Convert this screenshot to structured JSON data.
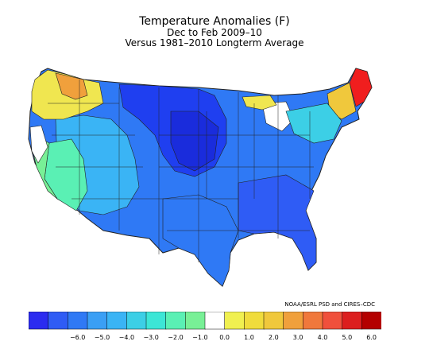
{
  "title": "Temperature Anomalies (F)",
  "subtitle": "Dec to Feb 2009–10",
  "baseline": "Versus 1981–2010 Longterm Average",
  "credit": "NOAA/ESRL PSD and CIRES–CDC",
  "colorbar": {
    "colors": [
      "#2b2bf0",
      "#2f5cf5",
      "#2f79f5",
      "#3a9ff5",
      "#3ab4f5",
      "#3ccfe6",
      "#3ce6d6",
      "#5af0b4",
      "#78f096",
      "#ffffff",
      "#f0f050",
      "#f0dc3c",
      "#f0c83c",
      "#f0a03c",
      "#f0783c",
      "#f0503c",
      "#dc1e1e",
      "#b40000"
    ],
    "tick_labels": [
      "−6.0",
      "−5.0",
      "−4.0",
      "−3.0",
      "−2.0",
      "−1.0",
      "0.0",
      "1.0",
      "2.0",
      "3.0",
      "4.0",
      "5.0",
      "6.0"
    ]
  }
}
